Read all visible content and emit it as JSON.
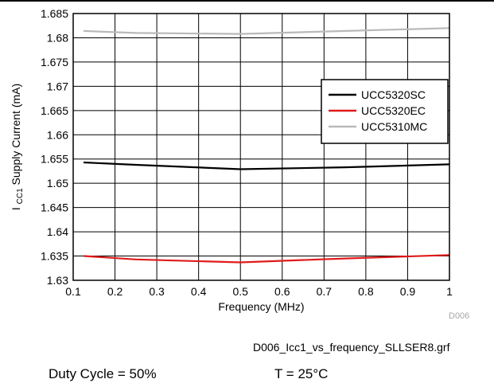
{
  "chart_data": {
    "type": "line",
    "title": "",
    "xlabel": "Frequency (MHz)",
    "ylabel": {
      "prefix": "I",
      "subscript": "CC1",
      "rest": " Supply Current (mA)"
    },
    "xlim": [
      0.1,
      1
    ],
    "ylim": [
      1.63,
      1.685
    ],
    "xticks": [
      "0.1",
      "0.2",
      "0.3",
      "0.4",
      "0.5",
      "0.6",
      "0.7",
      "0.8",
      "0.9",
      "1"
    ],
    "yticks": [
      "1.63",
      "1.635",
      "1.64",
      "1.645",
      "1.65",
      "1.655",
      "1.66",
      "1.665",
      "1.67",
      "1.675",
      "1.68",
      "1.685"
    ],
    "grid": true,
    "legend_position": "right",
    "series": [
      {
        "name": "UCC5320SC",
        "color": "#000000",
        "x": [
          0.125,
          0.25,
          0.5,
          0.75,
          1.0
        ],
        "y": [
          1.6543,
          1.6538,
          1.6529,
          1.6533,
          1.6539
        ]
      },
      {
        "name": "UCC5320EC",
        "color": "#e01b1b",
        "x": [
          0.125,
          0.25,
          0.5,
          0.75,
          1.0
        ],
        "y": [
          1.635,
          1.6343,
          1.6337,
          1.6345,
          1.6352
        ]
      },
      {
        "name": "UCC5310MC",
        "color": "#b9b9b9",
        "x": [
          0.125,
          0.25,
          0.5,
          0.75,
          1.0
        ],
        "y": [
          1.6814,
          1.681,
          1.6808,
          1.6814,
          1.682
        ]
      }
    ]
  },
  "figure_id": "D006",
  "file_caption": "D006_Icc1_vs_frequency_SLLSER8.grf",
  "conditions": {
    "duty_cycle": "Duty Cycle = 50%",
    "temperature": "T = 25°C"
  }
}
